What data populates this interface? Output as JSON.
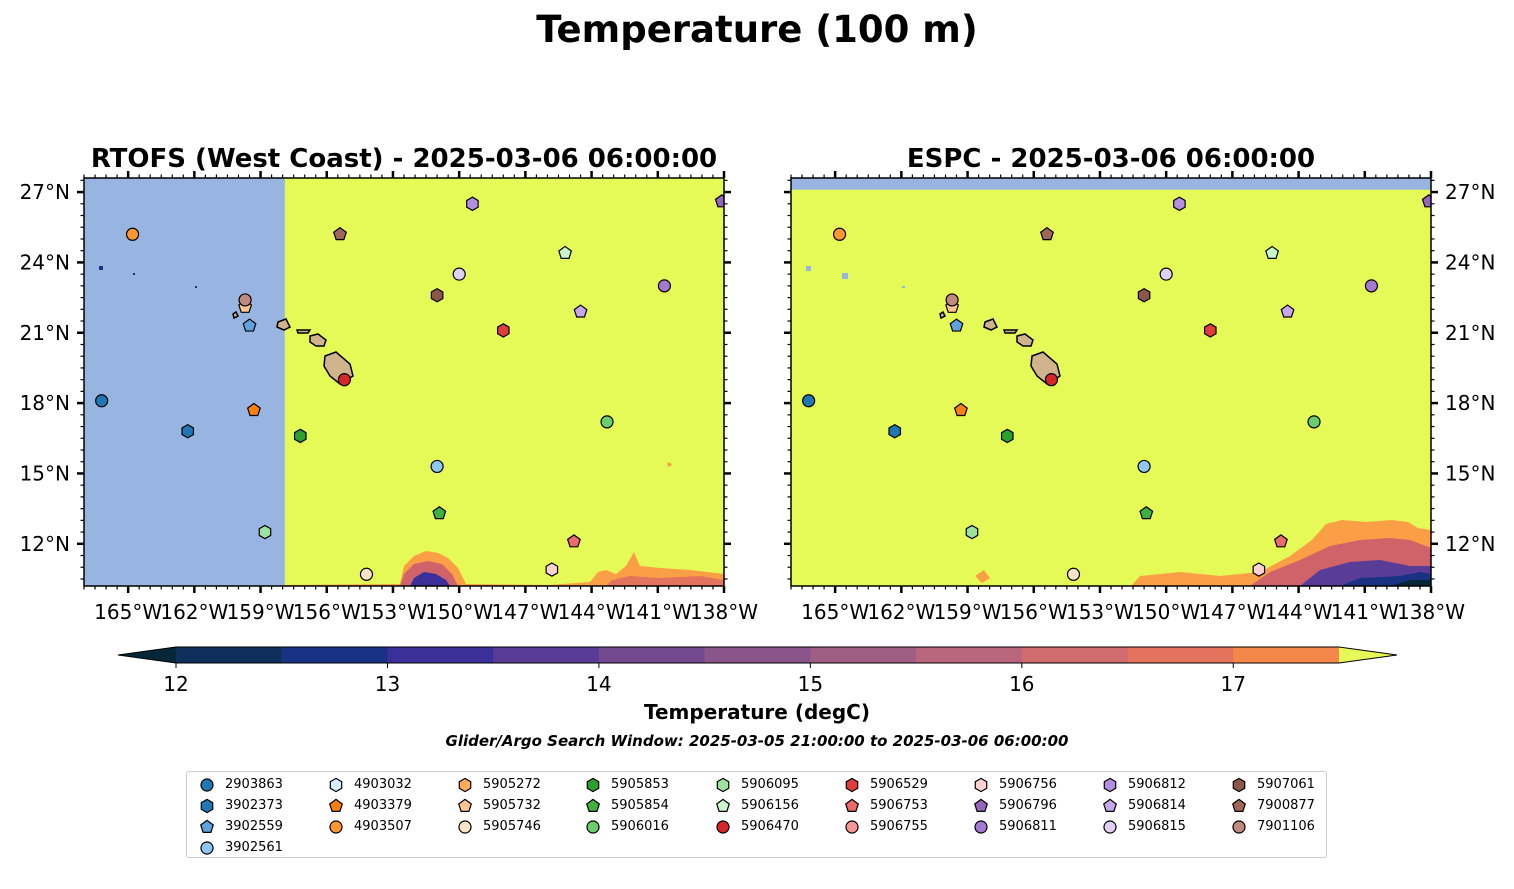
{
  "figure": {
    "title": "Temperature (100 m)",
    "subtitle": "Glider/Argo Search Window: 2025-03-05 21:00:00 to 2025-03-06 06:00:00"
  },
  "colorbar": {
    "label": "Temperature (degC)",
    "ticks": [
      "12",
      "13",
      "14",
      "15",
      "16",
      "17"
    ],
    "range": [
      12,
      17.5
    ],
    "step": 0.5,
    "extend": "both",
    "colors": [
      "#062737",
      "#0e2f5b",
      "#1a3283",
      "#3b2f9a",
      "#593c96",
      "#734a8f",
      "#8a558a",
      "#a05e84",
      "#b8667b",
      "#d06b6e",
      "#e4735d",
      "#f4884a",
      "#faa040",
      "#f8c03f",
      "#e7f956"
    ]
  },
  "map_colors": {
    "land": "#d2b48c",
    "no_data": "#98b5e1",
    "warm": "#e5f957"
  },
  "chart_data": [
    {
      "type": "map",
      "title": "RTOFS (West Coast) - 2025-03-06 06:00:00",
      "xlim": [
        -167,
        -138
      ],
      "ylim": [
        10.2,
        27.6
      ],
      "xticks": [
        "165°W",
        "162°W",
        "159°W",
        "156°W",
        "153°W",
        "150°W",
        "147°W",
        "144°W",
        "141°W",
        "138°W"
      ],
      "yticks": [
        "27°N",
        "24°N",
        "21°N",
        "18°N",
        "15°N",
        "12°N"
      ],
      "ytick_side": "left",
      "no_data_regions": [
        {
          "lon": [
            -167,
            -157.9
          ],
          "lat": [
            10.2,
            27.6
          ]
        }
      ],
      "field_description": "Temperature above 17.5 degC almost everywhere; cooler values (12-17 degC) only along the southern edge near 10.5-11.5N",
      "markers": []
    },
    {
      "type": "map",
      "title": "ESPC - 2025-03-06 06:00:00",
      "xlim": [
        -167,
        -138
      ],
      "ylim": [
        10.2,
        27.6
      ],
      "xticks": [
        "165°W",
        "162°W",
        "159°W",
        "156°W",
        "153°W",
        "150°W",
        "147°W",
        "144°W",
        "141°W",
        "138°W"
      ],
      "yticks": [
        "27°N",
        "24°N",
        "21°N",
        "18°N",
        "15°N",
        "12°N"
      ],
      "ytick_side": "right",
      "no_data_regions": [
        {
          "lon": [
            -167,
            -138
          ],
          "lat": [
            27.1,
            27.6
          ]
        }
      ],
      "field_description": "Temperature above 17.5 degC almost everywhere; cooler water (12-17 degC) in the southeast corner below about 13N",
      "markers": []
    }
  ],
  "floats": [
    {
      "id": "2903863",
      "marker": "circle",
      "color": "#1f77b4",
      "lon": -166.2,
      "lat": 18.1
    },
    {
      "id": "3902373",
      "marker": "hexagon",
      "color": "#1f77b4",
      "lon": -162.3,
      "lat": 16.8
    },
    {
      "id": "3902559",
      "marker": "pentagon",
      "color": "#5fa2dd",
      "lon": -159.5,
      "lat": 21.3
    },
    {
      "id": "3902561",
      "marker": "circle",
      "color": "#8ec7f2",
      "lon": -151.0,
      "lat": 15.3
    },
    {
      "id": "4903032",
      "marker": "hexagon",
      "color": "#d8ecff",
      "lon": null,
      "lat": null
    },
    {
      "id": "4903379",
      "marker": "pentagon",
      "color": "#ff7f0e",
      "lon": -159.3,
      "lat": 17.7
    },
    {
      "id": "4903507",
      "marker": "circle",
      "color": "#ff9830",
      "lon": -164.8,
      "lat": 25.2
    },
    {
      "id": "5905272",
      "marker": "hexagon",
      "color": "#ffad5c",
      "lon": null,
      "lat": null
    },
    {
      "id": "5905732",
      "marker": "pentagon",
      "color": "#ffc48f",
      "lon": -159.7,
      "lat": 22.1
    },
    {
      "id": "5905746",
      "marker": "circle",
      "color": "#ffe5c7",
      "lon": -154.2,
      "lat": 10.7
    },
    {
      "id": "5905853",
      "marker": "hexagon",
      "color": "#2ca02c",
      "lon": -157.2,
      "lat": 16.6
    },
    {
      "id": "5905854",
      "marker": "pentagon",
      "color": "#3fb13f",
      "lon": -150.9,
      "lat": 13.3
    },
    {
      "id": "5906016",
      "marker": "circle",
      "color": "#6ccd6c",
      "lon": -143.3,
      "lat": 17.2
    },
    {
      "id": "5906095",
      "marker": "hexagon",
      "color": "#9fe29f",
      "lon": -158.8,
      "lat": 12.5
    },
    {
      "id": "5906156",
      "marker": "pentagon",
      "color": "#cbf8cb",
      "lon": -145.2,
      "lat": 24.4
    },
    {
      "id": "5906470",
      "marker": "circle",
      "color": "#d62728",
      "lon": -155.2,
      "lat": 19.0
    },
    {
      "id": "5906529",
      "marker": "hexagon",
      "color": "#e03c3c",
      "lon": -148.0,
      "lat": 21.1
    },
    {
      "id": "5906753",
      "marker": "pentagon",
      "color": "#ec6a6a",
      "lon": -144.8,
      "lat": 12.1
    },
    {
      "id": "5906755",
      "marker": "circle",
      "color": "#f59595",
      "lon": null,
      "lat": null
    },
    {
      "id": "5906756",
      "marker": "hexagon",
      "color": "#fcd1d1",
      "lon": -145.8,
      "lat": 10.9
    },
    {
      "id": "5906796",
      "marker": "pentagon",
      "color": "#9467bd",
      "lon": -138.1,
      "lat": 26.6
    },
    {
      "id": "5906811",
      "marker": "circle",
      "color": "#a37ad0",
      "lon": -140.7,
      "lat": 23.0
    },
    {
      "id": "5906812",
      "marker": "hexagon",
      "color": "#b48ee0",
      "lon": -149.4,
      "lat": 26.5
    },
    {
      "id": "5906814",
      "marker": "pentagon",
      "color": "#c8a8ec",
      "lon": -144.5,
      "lat": 21.9
    },
    {
      "id": "5906815",
      "marker": "circle",
      "color": "#e1d0f5",
      "lon": -150.0,
      "lat": 23.5
    },
    {
      "id": "5907061",
      "marker": "hexagon",
      "color": "#8c564b",
      "lon": -151.0,
      "lat": 22.6
    },
    {
      "id": "7900877",
      "marker": "pentagon",
      "color": "#a0665a",
      "lon": -155.4,
      "lat": 25.2
    },
    {
      "id": "7901106",
      "marker": "circle",
      "color": "#c08a7e",
      "lon": -159.7,
      "lat": 22.4
    }
  ]
}
